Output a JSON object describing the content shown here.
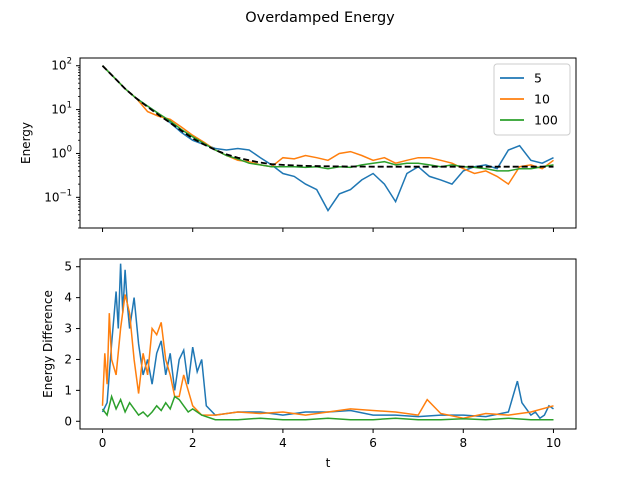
{
  "title": "Overdamped Energy",
  "chart_data": [
    {
      "type": "line",
      "ylabel": "Energy",
      "yscale": "log",
      "ylim": [
        0.02,
        150
      ],
      "xlim": [
        -0.5,
        10.5
      ],
      "yticks": [
        {
          "value": 100,
          "base": "10",
          "exp": "2"
        },
        {
          "value": 10,
          "base": "10",
          "exp": "1"
        },
        {
          "value": 1,
          "base": "10",
          "exp": "0"
        },
        {
          "value": 0.1,
          "base": "10",
          "exp": "−1"
        }
      ],
      "legend": {
        "placement": "top-right"
      },
      "series": [
        {
          "name": "5",
          "color": "#1f77b4",
          "x": [
            0,
            0.25,
            0.5,
            0.75,
            1,
            1.25,
            1.5,
            1.75,
            2,
            2.25,
            2.5,
            2.75,
            3,
            3.25,
            3.5,
            3.75,
            4,
            4.25,
            4.5,
            4.75,
            5,
            5.25,
            5.5,
            5.75,
            6,
            6.25,
            6.5,
            6.75,
            7,
            7.25,
            7.5,
            7.75,
            8,
            8.25,
            8.5,
            8.75,
            9,
            9.25,
            9.5,
            9.75,
            10
          ],
          "y": [
            100,
            55,
            30,
            18,
            12,
            8,
            5,
            3,
            2,
            1.6,
            1.3,
            1.2,
            1.3,
            1.2,
            0.8,
            0.55,
            0.35,
            0.3,
            0.2,
            0.15,
            0.05,
            0.12,
            0.15,
            0.25,
            0.35,
            0.2,
            0.08,
            0.35,
            0.5,
            0.3,
            0.25,
            0.2,
            0.4,
            0.5,
            0.55,
            0.45,
            1.2,
            1.5,
            0.7,
            0.6,
            0.8
          ]
        },
        {
          "name": "10",
          "color": "#ff7f0e",
          "x": [
            0,
            0.25,
            0.5,
            0.75,
            1,
            1.25,
            1.5,
            1.75,
            2,
            2.25,
            2.5,
            2.75,
            3,
            3.25,
            3.5,
            3.75,
            4,
            4.25,
            4.5,
            4.75,
            5,
            5.25,
            5.5,
            5.75,
            6,
            6.25,
            6.5,
            6.75,
            7,
            7.25,
            7.5,
            7.75,
            8,
            8.25,
            8.5,
            8.75,
            9,
            9.25,
            9.5,
            9.75,
            10
          ],
          "y": [
            100,
            55,
            30,
            18,
            9,
            7,
            6,
            4,
            2.6,
            1.8,
            1.2,
            0.9,
            0.7,
            0.65,
            0.55,
            0.5,
            0.8,
            0.75,
            0.9,
            0.8,
            0.7,
            1.0,
            1.1,
            0.9,
            0.7,
            0.8,
            0.6,
            0.7,
            0.8,
            0.8,
            0.7,
            0.6,
            0.45,
            0.35,
            0.4,
            0.3,
            0.2,
            0.5,
            0.55,
            0.45,
            0.7
          ]
        },
        {
          "name": "100",
          "color": "#2ca02c",
          "x": [
            0,
            0.25,
            0.5,
            0.75,
            1,
            1.25,
            1.5,
            1.75,
            2,
            2.25,
            2.5,
            2.75,
            3,
            3.25,
            3.5,
            3.75,
            4,
            4.25,
            4.5,
            4.75,
            5,
            5.25,
            5.5,
            5.75,
            6,
            6.25,
            6.5,
            6.75,
            7,
            7.25,
            7.5,
            7.75,
            8,
            8.25,
            8.5,
            8.75,
            9,
            9.25,
            9.5,
            9.75,
            10
          ],
          "y": [
            100,
            55,
            30,
            18,
            12,
            8,
            5.5,
            3.5,
            2.4,
            1.7,
            1.2,
            0.9,
            0.75,
            0.6,
            0.55,
            0.5,
            0.5,
            0.5,
            0.48,
            0.5,
            0.45,
            0.5,
            0.48,
            0.55,
            0.6,
            0.65,
            0.55,
            0.6,
            0.6,
            0.55,
            0.5,
            0.55,
            0.5,
            0.48,
            0.45,
            0.4,
            0.4,
            0.45,
            0.45,
            0.5,
            0.55
          ]
        },
        {
          "name": "",
          "color": "#000000",
          "dashed": true,
          "x": [
            0,
            0.25,
            0.5,
            0.75,
            1,
            1.25,
            1.5,
            1.75,
            2,
            2.25,
            2.5,
            2.75,
            3,
            3.25,
            3.5,
            3.75,
            4,
            4.5,
            5,
            6,
            7,
            8,
            9,
            10
          ],
          "y": [
            100,
            55,
            30,
            18,
            11.5,
            7.5,
            5,
            3.3,
            2.2,
            1.6,
            1.2,
            0.95,
            0.8,
            0.7,
            0.62,
            0.57,
            0.55,
            0.52,
            0.51,
            0.5,
            0.5,
            0.5,
            0.5,
            0.5
          ]
        }
      ]
    },
    {
      "type": "line",
      "xlabel": "t",
      "ylabel": "Energy Difference",
      "ylim": [
        -0.25,
        5.25
      ],
      "xlim": [
        -0.5,
        10.5
      ],
      "xticks": [
        0,
        2,
        4,
        6,
        8,
        10
      ],
      "yticks": [
        0,
        1,
        2,
        3,
        4,
        5
      ],
      "series": [
        {
          "name": "5",
          "color": "#1f77b4",
          "x": [
            0,
            0.1,
            0.2,
            0.3,
            0.35,
            0.4,
            0.45,
            0.5,
            0.55,
            0.6,
            0.7,
            0.8,
            0.9,
            1.0,
            1.1,
            1.2,
            1.3,
            1.4,
            1.5,
            1.6,
            1.7,
            1.8,
            1.9,
            2.0,
            2.1,
            2.2,
            2.3,
            2.5,
            3,
            3.5,
            4,
            4.5,
            5,
            5.5,
            6,
            6.5,
            7,
            7.5,
            8,
            8.5,
            9,
            9.1,
            9.2,
            9.3,
            9.4,
            9.5,
            9.6,
            9.7,
            9.8,
            9.9,
            10
          ],
          "y": [
            0.3,
            0.6,
            2.5,
            4.2,
            3.0,
            5.1,
            3.5,
            4.9,
            3.8,
            3.0,
            4.0,
            2.5,
            1.5,
            2.0,
            1.2,
            2.2,
            2.6,
            1.5,
            2.2,
            1.0,
            2.0,
            2.3,
            1.2,
            2.4,
            1.6,
            2.0,
            0.5,
            0.2,
            0.3,
            0.3,
            0.2,
            0.3,
            0.3,
            0.35,
            0.2,
            0.2,
            0.15,
            0.2,
            0.2,
            0.15,
            0.3,
            0.8,
            1.3,
            0.6,
            0.4,
            0.2,
            0.3,
            0.1,
            0.2,
            0.5,
            0.4
          ]
        },
        {
          "name": "10",
          "color": "#ff7f0e",
          "x": [
            0,
            0.05,
            0.1,
            0.15,
            0.2,
            0.3,
            0.4,
            0.5,
            0.6,
            0.7,
            0.8,
            0.9,
            1.0,
            1.1,
            1.2,
            1.3,
            1.4,
            1.5,
            1.6,
            1.7,
            1.8,
            1.9,
            2.0,
            2.2,
            2.5,
            3,
            3.5,
            4,
            4.5,
            5,
            5.5,
            6,
            6.5,
            7,
            7.2,
            7.5,
            8,
            8.5,
            9,
            9.5,
            10
          ],
          "y": [
            0.5,
            2.2,
            1.2,
            3.5,
            2.0,
            1.5,
            3.0,
            4.1,
            3.5,
            2.0,
            0.9,
            2.2,
            1.5,
            3.0,
            2.8,
            3.2,
            2.0,
            1.5,
            0.8,
            0.8,
            1.5,
            1.0,
            0.5,
            0.2,
            0.2,
            0.3,
            0.25,
            0.3,
            0.2,
            0.3,
            0.4,
            0.35,
            0.3,
            0.2,
            0.7,
            0.25,
            0.1,
            0.25,
            0.2,
            0.3,
            0.5
          ]
        },
        {
          "name": "100",
          "color": "#2ca02c",
          "x": [
            0,
            0.1,
            0.2,
            0.3,
            0.4,
            0.5,
            0.6,
            0.7,
            0.8,
            0.9,
            1.0,
            1.1,
            1.2,
            1.3,
            1.4,
            1.5,
            1.6,
            1.7,
            1.8,
            1.9,
            2.0,
            2.2,
            2.5,
            3,
            3.5,
            4,
            4.5,
            5,
            5.5,
            6,
            6.5,
            7,
            7.5,
            8,
            8.5,
            9,
            9.5,
            10
          ],
          "y": [
            0.4,
            0.2,
            0.8,
            0.4,
            0.7,
            0.3,
            0.6,
            0.4,
            0.2,
            0.3,
            0.15,
            0.3,
            0.5,
            0.35,
            0.6,
            0.4,
            0.8,
            0.7,
            0.5,
            0.3,
            0.4,
            0.2,
            0.05,
            0.05,
            0.1,
            0.05,
            0.05,
            0.1,
            0.05,
            0.05,
            0.1,
            0.05,
            0.05,
            0.08,
            0.05,
            0.1,
            0.05,
            0.05
          ]
        }
      ]
    }
  ]
}
